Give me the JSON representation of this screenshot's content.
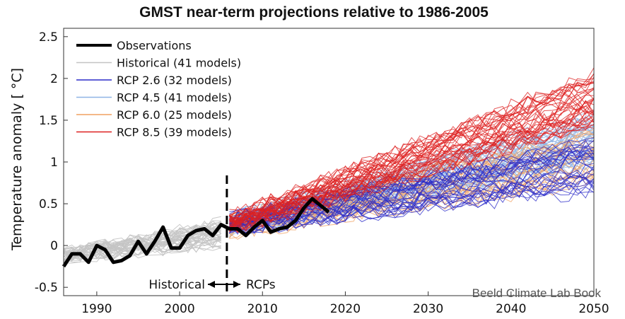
{
  "chart_data": {
    "type": "line",
    "title": "GMST near-term projections relative to 1986-2005",
    "ylabel": "Temperature anomaly  [ °C]",
    "xlabel": "",
    "xlim": [
      1986,
      2050
    ],
    "ylim": [
      -0.6,
      2.6
    ],
    "x_ticks": [
      "1990",
      "2000",
      "2010",
      "2020",
      "2030",
      "2040",
      "2050"
    ],
    "x_tick_values": [
      1990,
      2000,
      2010,
      2020,
      2030,
      2040,
      2050
    ],
    "y_ticks": [
      "-0.5",
      "0",
      "0.5",
      "1",
      "1.5",
      "2",
      "2.5"
    ],
    "y_tick_values": [
      -0.5,
      0,
      0.5,
      1,
      1.5,
      2,
      2.5
    ],
    "grid": false,
    "legend_position": "top-left",
    "series": [
      {
        "name": "Observations",
        "color": "#000000",
        "style": "thick",
        "x": [
          1986,
          1987,
          1988,
          1989,
          1990,
          1991,
          1992,
          1993,
          1994,
          1995,
          1996,
          1997,
          1998,
          1999,
          2000,
          2001,
          2002,
          2003,
          2004,
          2005,
          2006,
          2007,
          2008,
          2009,
          2010,
          2011,
          2012,
          2013,
          2014,
          2015,
          2016,
          2017,
          2018
        ],
        "y": [
          -0.25,
          -0.1,
          -0.1,
          -0.2,
          0.0,
          -0.05,
          -0.2,
          -0.18,
          -0.12,
          0.05,
          -0.1,
          0.05,
          0.22,
          -0.03,
          -0.03,
          0.12,
          0.18,
          0.2,
          0.12,
          0.25,
          0.2,
          0.2,
          0.12,
          0.22,
          0.3,
          0.16,
          0.2,
          0.22,
          0.3,
          0.45,
          0.56,
          0.48,
          0.4
        ]
      },
      {
        "name": "Historical (41 models)",
        "color": "#c4c4c4",
        "model_count": 41,
        "period": [
          1986,
          2005
        ],
        "mean_start": -0.12,
        "mean_end": 0.15
      },
      {
        "name": "RCP 2.6 (32 models)",
        "color": "#2b2bc8",
        "model_count": 32,
        "period": [
          2006,
          2050
        ],
        "mean_start": 0.25,
        "mean_end": 0.95
      },
      {
        "name": "RCP 4.5 (41 models)",
        "color": "#8fb4e6",
        "model_count": 41,
        "period": [
          2006,
          2050
        ],
        "mean_start": 0.25,
        "mean_end": 1.25
      },
      {
        "name": "RCP 6.0 (25 models)",
        "color": "#f0a060",
        "model_count": 25,
        "period": [
          2006,
          2050
        ],
        "mean_start": 0.23,
        "mean_end": 1.05
      },
      {
        "name": "RCP 8.5 (39 models)",
        "color": "#dd2020",
        "model_count": 39,
        "period": [
          2006,
          2050
        ],
        "mean_start": 0.27,
        "mean_end": 1.75
      }
    ],
    "divider_year": 2005.7,
    "annotations": {
      "left": "Historical",
      "right": "RCPs",
      "credit": "Beeld Climate Lab Book"
    }
  }
}
